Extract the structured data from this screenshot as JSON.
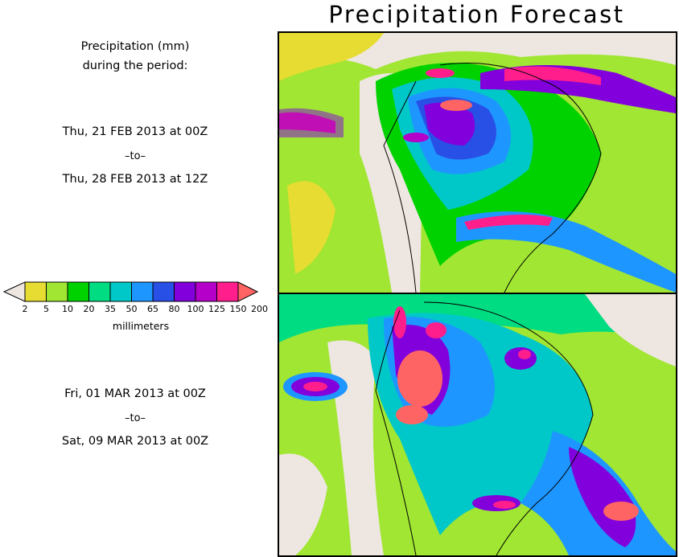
{
  "title": "Precipitation Forecast",
  "units_label_line1": "Precipitation (mm)",
  "units_label_line2": "during the period:",
  "period1": {
    "start": "Thu, 21 FEB 2013 at 00Z",
    "separator": "–to–",
    "end": "Thu, 28 FEB 2013 at 12Z"
  },
  "period2": {
    "start": "Fri, 01 MAR 2013 at 00Z",
    "separator": "–to–",
    "end": "Sat, 09 MAR 2013 at 00Z"
  },
  "legend": {
    "unit": "millimeters",
    "ticks": [
      "2",
      "5",
      "10",
      "20",
      "35",
      "50",
      "65",
      "80",
      "100",
      "125",
      "150",
      "200"
    ],
    "colors": [
      "#eee6e0",
      "#e6dc32",
      "#a0e632",
      "#00d200",
      "#00dc82",
      "#00c8c8",
      "#1e96ff",
      "#2850e6",
      "#8200dc",
      "#b400c8",
      "#ff1e8c",
      "#ff6464"
    ]
  },
  "map1_label": "Forecast map for period 1",
  "map2_label": "Forecast map for period 2"
}
